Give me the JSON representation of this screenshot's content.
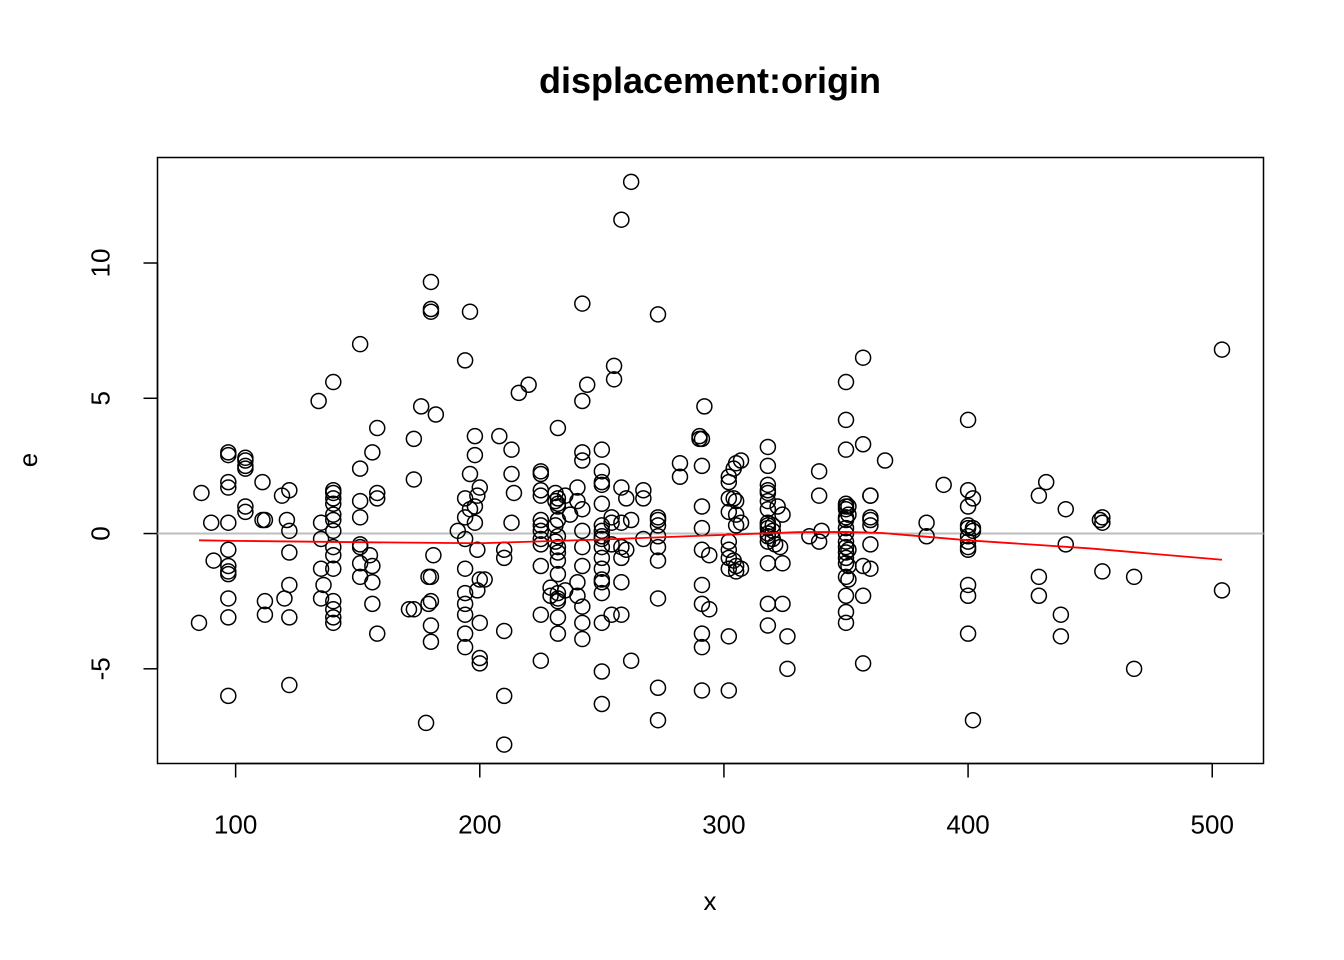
{
  "chart_data": {
    "type": "scatter",
    "title": "displacement:origin",
    "xlabel": "x",
    "ylabel": "e",
    "xlim": [
      68,
      521
    ],
    "ylim": [
      -8.5,
      13.9
    ],
    "x_ticks": [
      100,
      200,
      300,
      400,
      500
    ],
    "x_tick_labels": [
      "100",
      "200",
      "300",
      "400",
      "500"
    ],
    "y_ticks": [
      -5,
      0,
      5,
      10
    ],
    "y_tick_labels": [
      "-5",
      "0",
      "5",
      "10"
    ],
    "grid": false,
    "legend": "none",
    "colors": {
      "points": "#000000",
      "smooth": "#ff0000",
      "reference": "#bebebe"
    },
    "reference_line_y": 0,
    "points": [
      [
        85,
        -3.3
      ],
      [
        86,
        1.5
      ],
      [
        90,
        0.4
      ],
      [
        91,
        -1.0
      ],
      [
        97,
        3.0
      ],
      [
        97,
        2.9
      ],
      [
        97,
        1.9
      ],
      [
        97,
        1.7
      ],
      [
        97,
        0.4
      ],
      [
        97,
        -0.6
      ],
      [
        97,
        -1.2
      ],
      [
        97,
        -1.4
      ],
      [
        97,
        -1.5
      ],
      [
        97,
        -2.4
      ],
      [
        97,
        -3.1
      ],
      [
        97,
        -6.0
      ],
      [
        104,
        2.8
      ],
      [
        104,
        2.7
      ],
      [
        104,
        2.5
      ],
      [
        104,
        2.4
      ],
      [
        104,
        1.0
      ],
      [
        104,
        0.8
      ],
      [
        111,
        1.9
      ],
      [
        111,
        0.5
      ],
      [
        112,
        0.5
      ],
      [
        112,
        -2.5
      ],
      [
        112,
        -3.0
      ],
      [
        119,
        1.4
      ],
      [
        120,
        -2.4
      ],
      [
        121,
        0.5
      ],
      [
        122,
        1.6
      ],
      [
        122,
        0.1
      ],
      [
        122,
        -0.7
      ],
      [
        122,
        -1.9
      ],
      [
        122,
        -3.1
      ],
      [
        122,
        -5.6
      ],
      [
        134,
        4.9
      ],
      [
        135,
        0.4
      ],
      [
        135,
        -0.2
      ],
      [
        135,
        -1.3
      ],
      [
        135,
        -2.4
      ],
      [
        136,
        -1.9
      ],
      [
        140,
        5.6
      ],
      [
        140,
        1.6
      ],
      [
        140,
        1.5
      ],
      [
        140,
        1.3
      ],
      [
        140,
        1.1
      ],
      [
        140,
        0.7
      ],
      [
        140,
        0.5
      ],
      [
        140,
        0.1
      ],
      [
        140,
        -0.5
      ],
      [
        140,
        -0.8
      ],
      [
        140,
        -1.3
      ],
      [
        140,
        -2.5
      ],
      [
        140,
        -2.8
      ],
      [
        140,
        -3.1
      ],
      [
        140,
        -3.3
      ],
      [
        151,
        7.0
      ],
      [
        151,
        2.4
      ],
      [
        151,
        1.2
      ],
      [
        151,
        0.6
      ],
      [
        151,
        -0.4
      ],
      [
        151,
        -0.5
      ],
      [
        151,
        -1.1
      ],
      [
        151,
        -1.6
      ],
      [
        155,
        -0.8
      ],
      [
        156,
        3.0
      ],
      [
        156,
        -1.2
      ],
      [
        156,
        -1.8
      ],
      [
        156,
        -2.6
      ],
      [
        158,
        3.9
      ],
      [
        158,
        1.5
      ],
      [
        158,
        1.3
      ],
      [
        158,
        -3.7
      ],
      [
        171,
        -2.8
      ],
      [
        173,
        3.5
      ],
      [
        173,
        2.0
      ],
      [
        173,
        -2.8
      ],
      [
        176,
        4.7
      ],
      [
        178,
        -7.0
      ],
      [
        179,
        -1.6
      ],
      [
        179,
        -2.6
      ],
      [
        180,
        9.3
      ],
      [
        180,
        8.3
      ],
      [
        180,
        8.2
      ],
      [
        180,
        -1.6
      ],
      [
        180,
        -2.5
      ],
      [
        180,
        -3.4
      ],
      [
        180,
        -4.0
      ],
      [
        181,
        -0.8
      ],
      [
        182,
        4.4
      ],
      [
        191,
        0.1
      ],
      [
        194,
        6.4
      ],
      [
        194,
        1.3
      ],
      [
        194,
        0.6
      ],
      [
        194,
        -0.2
      ],
      [
        194,
        -1.3
      ],
      [
        194,
        -2.2
      ],
      [
        194,
        -2.6
      ],
      [
        194,
        -3.0
      ],
      [
        194,
        -3.7
      ],
      [
        194,
        -4.2
      ],
      [
        196,
        8.2
      ],
      [
        196,
        2.2
      ],
      [
        196,
        0.9
      ],
      [
        198,
        3.6
      ],
      [
        198,
        2.9
      ],
      [
        198,
        1.0
      ],
      [
        198,
        0.4
      ],
      [
        199,
        1.4
      ],
      [
        199,
        -0.6
      ],
      [
        199,
        -2.1
      ],
      [
        200,
        1.7
      ],
      [
        200,
        -3.3
      ],
      [
        200,
        -4.6
      ],
      [
        200,
        -4.8
      ],
      [
        200,
        -1.7
      ],
      [
        202,
        -1.7
      ],
      [
        208,
        3.6
      ],
      [
        210,
        -0.6
      ],
      [
        210,
        -0.9
      ],
      [
        210,
        -3.6
      ],
      [
        210,
        -6.0
      ],
      [
        210,
        -7.8
      ],
      [
        213,
        3.1
      ],
      [
        213,
        2.2
      ],
      [
        213,
        0.4
      ],
      [
        214,
        1.5
      ],
      [
        216,
        5.2
      ],
      [
        220,
        5.5
      ],
      [
        225,
        2.3
      ],
      [
        225,
        2.2
      ],
      [
        225,
        1.6
      ],
      [
        225,
        1.4
      ],
      [
        225,
        0.5
      ],
      [
        225,
        0.3
      ],
      [
        225,
        0.1
      ],
      [
        225,
        -0.2
      ],
      [
        225,
        -0.4
      ],
      [
        225,
        -1.2
      ],
      [
        225,
        -3.0
      ],
      [
        225,
        -4.7
      ],
      [
        229,
        -2.3
      ],
      [
        229,
        -2.0
      ],
      [
        231,
        1.5
      ],
      [
        231,
        1.2
      ],
      [
        231,
        0.3
      ],
      [
        231,
        -0.3
      ],
      [
        232,
        1.3
      ],
      [
        232,
        1.1
      ],
      [
        232,
        1.0
      ],
      [
        232,
        0.5
      ],
      [
        232,
        -0.1
      ],
      [
        232,
        -0.5
      ],
      [
        232,
        -0.7
      ],
      [
        232,
        -1.0
      ],
      [
        232,
        -1.5
      ],
      [
        232,
        -2.2
      ],
      [
        232,
        -2.4
      ],
      [
        232,
        -2.5
      ],
      [
        232,
        -3.1
      ],
      [
        232,
        -3.7
      ],
      [
        232,
        3.9
      ],
      [
        235,
        1.4
      ],
      [
        235,
        -2.1
      ],
      [
        237,
        0.7
      ],
      [
        240,
        1.7
      ],
      [
        240,
        1.2
      ],
      [
        240,
        -1.8
      ],
      [
        240,
        -2.3
      ],
      [
        242,
        8.5
      ],
      [
        242,
        4.9
      ],
      [
        242,
        3.0
      ],
      [
        242,
        2.7
      ],
      [
        242,
        0.9
      ],
      [
        242,
        0.1
      ],
      [
        242,
        -0.5
      ],
      [
        242,
        -1.2
      ],
      [
        242,
        -2.7
      ],
      [
        242,
        -3.3
      ],
      [
        242,
        -3.9
      ],
      [
        244,
        5.5
      ],
      [
        250,
        3.1
      ],
      [
        250,
        2.3
      ],
      [
        250,
        1.9
      ],
      [
        250,
        1.8
      ],
      [
        250,
        1.1
      ],
      [
        250,
        0.3
      ],
      [
        250,
        0.1
      ],
      [
        250,
        -0.1
      ],
      [
        250,
        -0.2
      ],
      [
        250,
        -0.5
      ],
      [
        250,
        -0.9
      ],
      [
        250,
        -1.3
      ],
      [
        250,
        -1.7
      ],
      [
        250,
        -1.8
      ],
      [
        250,
        -2.2
      ],
      [
        250,
        -3.3
      ],
      [
        250,
        -5.1
      ],
      [
        250,
        -6.3
      ],
      [
        254,
        0.6
      ],
      [
        254,
        0.4
      ],
      [
        254,
        -0.4
      ],
      [
        254,
        -3.0
      ],
      [
        255,
        6.2
      ],
      [
        255,
        5.7
      ],
      [
        258,
        11.6
      ],
      [
        258,
        1.7
      ],
      [
        258,
        0.4
      ],
      [
        258,
        -0.5
      ],
      [
        258,
        -0.9
      ],
      [
        258,
        -1.8
      ],
      [
        258,
        -3.0
      ],
      [
        260,
        1.3
      ],
      [
        260,
        -0.6
      ],
      [
        262,
        13.0
      ],
      [
        262,
        0.5
      ],
      [
        262,
        -4.7
      ],
      [
        267,
        1.6
      ],
      [
        267,
        1.3
      ],
      [
        267,
        -0.2
      ],
      [
        273,
        8.1
      ],
      [
        273,
        0.6
      ],
      [
        273,
        0.5
      ],
      [
        273,
        0.3
      ],
      [
        273,
        -0.1
      ],
      [
        273,
        -0.5
      ],
      [
        273,
        -1.0
      ],
      [
        273,
        -2.4
      ],
      [
        273,
        -5.7
      ],
      [
        273,
        -6.9
      ],
      [
        282,
        2.6
      ],
      [
        282,
        2.1
      ],
      [
        290,
        3.6
      ],
      [
        290,
        3.5
      ],
      [
        291,
        3.5
      ],
      [
        291,
        2.5
      ],
      [
        291,
        1.0
      ],
      [
        291,
        0.2
      ],
      [
        291,
        -0.6
      ],
      [
        291,
        -1.9
      ],
      [
        291,
        -2.6
      ],
      [
        291,
        -3.7
      ],
      [
        291,
        -4.2
      ],
      [
        291,
        -5.8
      ],
      [
        292,
        4.7
      ],
      [
        294,
        -0.8
      ],
      [
        294,
        -2.8
      ],
      [
        302,
        2.1
      ],
      [
        302,
        1.9
      ],
      [
        302,
        1.3
      ],
      [
        302,
        0.8
      ],
      [
        302,
        -0.3
      ],
      [
        302,
        -0.6
      ],
      [
        302,
        -0.9
      ],
      [
        302,
        -1.3
      ],
      [
        302,
        -3.8
      ],
      [
        302,
        -5.8
      ],
      [
        304,
        2.4
      ],
      [
        304,
        1.3
      ],
      [
        304,
        -1.0
      ],
      [
        305,
        2.6
      ],
      [
        305,
        1.2
      ],
      [
        305,
        0.7
      ],
      [
        305,
        0.3
      ],
      [
        305,
        -1.2
      ],
      [
        305,
        -1.4
      ],
      [
        307,
        2.7
      ],
      [
        307,
        0.4
      ],
      [
        307,
        -1.3
      ],
      [
        318,
        3.2
      ],
      [
        318,
        2.5
      ],
      [
        318,
        1.8
      ],
      [
        318,
        1.6
      ],
      [
        318,
        1.5
      ],
      [
        318,
        1.2
      ],
      [
        318,
        0.9
      ],
      [
        318,
        0.4
      ],
      [
        318,
        0.3
      ],
      [
        318,
        0.2
      ],
      [
        318,
        0.0
      ],
      [
        318,
        -0.1
      ],
      [
        318,
        -0.3
      ],
      [
        318,
        -1.1
      ],
      [
        318,
        -2.6
      ],
      [
        318,
        -3.4
      ],
      [
        320,
        0.3
      ],
      [
        320,
        0.1
      ],
      [
        320,
        -0.2
      ],
      [
        321,
        -0.4
      ],
      [
        322,
        1.0
      ],
      [
        323,
        -0.5
      ],
      [
        324,
        0.7
      ],
      [
        324,
        -1.1
      ],
      [
        324,
        -2.6
      ],
      [
        326,
        -3.8
      ],
      [
        326,
        -5.0
      ],
      [
        335,
        -0.1
      ],
      [
        339,
        2.3
      ],
      [
        339,
        1.4
      ],
      [
        339,
        -0.3
      ],
      [
        340,
        0.1
      ],
      [
        350,
        5.6
      ],
      [
        350,
        4.2
      ],
      [
        350,
        3.1
      ],
      [
        350,
        1.1
      ],
      [
        350,
        1.0
      ],
      [
        350,
        0.9
      ],
      [
        350,
        0.6
      ],
      [
        350,
        0.5
      ],
      [
        350,
        0.2
      ],
      [
        350,
        0.0
      ],
      [
        350,
        -0.3
      ],
      [
        350,
        -0.5
      ],
      [
        350,
        -0.7
      ],
      [
        350,
        -0.9
      ],
      [
        350,
        -1.1
      ],
      [
        350,
        -1.6
      ],
      [
        350,
        -2.3
      ],
      [
        350,
        -2.9
      ],
      [
        350,
        -3.3
      ],
      [
        351,
        1.0
      ],
      [
        351,
        0.7
      ],
      [
        351,
        -0.6
      ],
      [
        351,
        -1.2
      ],
      [
        351,
        -1.7
      ],
      [
        357,
        6.5
      ],
      [
        357,
        3.3
      ],
      [
        357,
        -1.2
      ],
      [
        357,
        -2.3
      ],
      [
        357,
        -4.8
      ],
      [
        360,
        1.4
      ],
      [
        360,
        1.4
      ],
      [
        360,
        0.6
      ],
      [
        360,
        0.5
      ],
      [
        360,
        0.3
      ],
      [
        360,
        -0.4
      ],
      [
        360,
        -1.3
      ],
      [
        366,
        2.7
      ],
      [
        383,
        0.4
      ],
      [
        383,
        -0.1
      ],
      [
        390,
        1.8
      ],
      [
        400,
        4.2
      ],
      [
        400,
        1.6
      ],
      [
        400,
        1.0
      ],
      [
        400,
        0.3
      ],
      [
        400,
        0.2
      ],
      [
        400,
        -0.1
      ],
      [
        400,
        -0.3
      ],
      [
        400,
        -0.5
      ],
      [
        400,
        -0.6
      ],
      [
        400,
        -1.9
      ],
      [
        400,
        -2.3
      ],
      [
        400,
        -3.7
      ],
      [
        402,
        1.3
      ],
      [
        402,
        0.2
      ],
      [
        402,
        0.1
      ],
      [
        402,
        -6.9
      ],
      [
        429,
        1.4
      ],
      [
        429,
        -1.6
      ],
      [
        429,
        -2.3
      ],
      [
        432,
        1.9
      ],
      [
        438,
        -3.0
      ],
      [
        438,
        -3.8
      ],
      [
        440,
        0.9
      ],
      [
        440,
        -0.4
      ],
      [
        454,
        0.5
      ],
      [
        455,
        0.6
      ],
      [
        455,
        0.4
      ],
      [
        455,
        -1.4
      ],
      [
        468,
        -1.6
      ],
      [
        468,
        -5.0
      ],
      [
        504,
        6.8
      ],
      [
        504,
        -2.1
      ]
    ],
    "smooth_line": [
      [
        85,
        -0.25
      ],
      [
        100,
        -0.27
      ],
      [
        150,
        -0.32
      ],
      [
        200,
        -0.36
      ],
      [
        250,
        -0.22
      ],
      [
        300,
        -0.05
      ],
      [
        330,
        0.05
      ],
      [
        350,
        0.06
      ],
      [
        365,
        0.02
      ],
      [
        400,
        -0.25
      ],
      [
        450,
        -0.55
      ],
      [
        504,
        -0.97
      ]
    ]
  }
}
